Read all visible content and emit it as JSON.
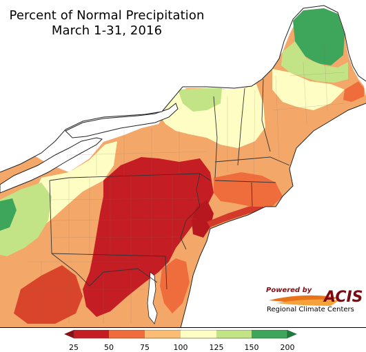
{
  "title": {
    "line1": "Percent of Normal Precipitation",
    "line2": "March 1-31, 2016"
  },
  "logo": {
    "powered_by": "Powered by",
    "name": "ACIS",
    "subtitle": "Regional Climate Centers"
  },
  "legend": {
    "ticks": [
      "25",
      "50",
      "75",
      "100",
      "125",
      "150",
      "200"
    ],
    "colors": {
      "25_50": "#c41e24",
      "50_75": "#ef6c3c",
      "75_100": "#fbbc74",
      "100_125": "#fefdc3",
      "125_150": "#c2e486",
      "150_200": "#3da65a"
    }
  },
  "map_colors": {
    "water": "#ffffff",
    "outline": "#222222"
  }
}
